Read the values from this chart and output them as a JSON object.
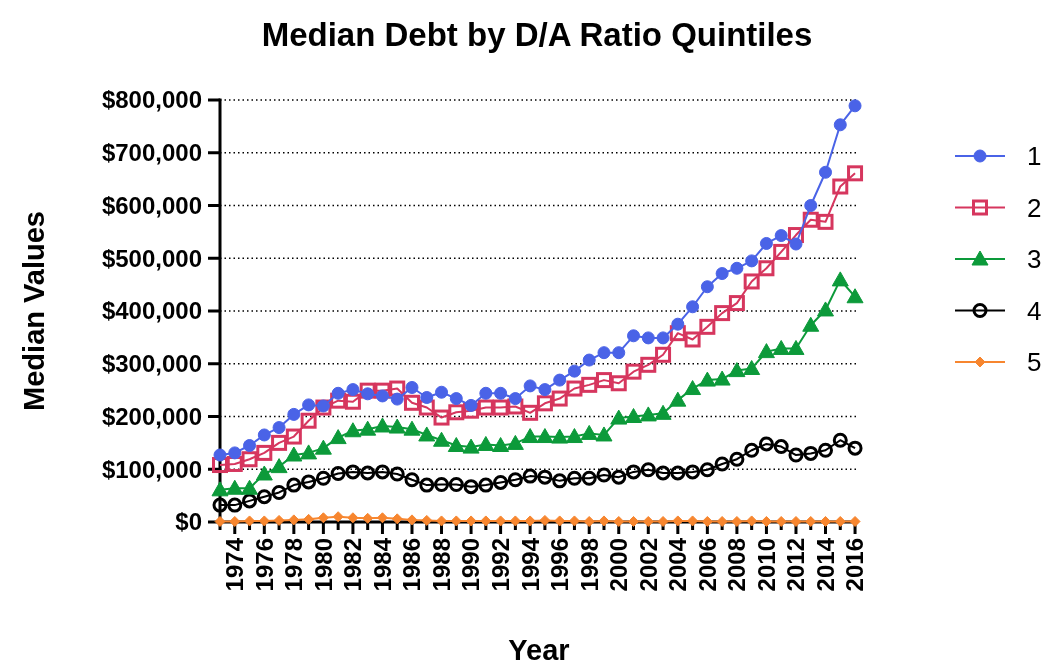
{
  "chart_data": {
    "type": "line",
    "title": "Median Debt by D/A Ratio Quintiles",
    "xlabel": "Year",
    "ylabel": "Median Values",
    "x": [
      1973,
      1974,
      1975,
      1976,
      1977,
      1978,
      1979,
      1980,
      1981,
      1982,
      1983,
      1984,
      1985,
      1986,
      1987,
      1988,
      1989,
      1990,
      1991,
      1992,
      1993,
      1994,
      1995,
      1996,
      1997,
      1998,
      1999,
      2000,
      2001,
      2002,
      2003,
      2004,
      2005,
      2006,
      2007,
      2008,
      2009,
      2010,
      2011,
      2012,
      2013,
      2014,
      2015,
      2016
    ],
    "series": [
      {
        "name": "1",
        "color": "#4a63e7",
        "marker": "circle",
        "values": [
          127000,
          131000,
          145000,
          165000,
          179000,
          204000,
          222000,
          220000,
          244000,
          251000,
          243000,
          239000,
          233000,
          255000,
          236000,
          246000,
          234000,
          221000,
          244000,
          244000,
          234000,
          258000,
          251000,
          269000,
          286000,
          307000,
          321000,
          321000,
          353000,
          349000,
          349000,
          375000,
          408000,
          446000,
          471000,
          481000,
          495000,
          528000,
          543000,
          527000,
          600000,
          663000,
          753000,
          789000
        ]
      },
      {
        "name": "2",
        "color": "#d6365e",
        "marker": "square",
        "values": [
          108000,
          110000,
          119000,
          131000,
          150000,
          162000,
          192000,
          217000,
          230000,
          228000,
          249000,
          249000,
          253000,
          226000,
          217000,
          198000,
          208000,
          211000,
          217000,
          217000,
          219000,
          207000,
          225000,
          234000,
          253000,
          260000,
          269000,
          263000,
          285000,
          298000,
          317000,
          358000,
          346000,
          370000,
          396000,
          415000,
          456000,
          481000,
          512000,
          544000,
          573000,
          569000,
          636000,
          661000
        ]
      },
      {
        "name": "3",
        "color": "#0c9a3a",
        "marker": "triangle",
        "values": [
          61000,
          64000,
          64000,
          91000,
          105000,
          127000,
          131000,
          140000,
          160000,
          173000,
          176000,
          182000,
          180000,
          176000,
          165000,
          155000,
          145000,
          142000,
          147000,
          145000,
          149000,
          162000,
          162000,
          161000,
          162000,
          168000,
          165000,
          197000,
          200000,
          203000,
          206000,
          231000,
          253000,
          269000,
          271000,
          287000,
          291000,
          323000,
          329000,
          329000,
          373000,
          402000,
          459000,
          427000
        ]
      },
      {
        "name": "4",
        "color": "#000000",
        "marker": "circle",
        "values": [
          32000,
          32000,
          40000,
          48000,
          56000,
          70000,
          76000,
          83000,
          92000,
          95000,
          93000,
          95000,
          91000,
          80000,
          70000,
          71000,
          71000,
          67000,
          70000,
          75000,
          80000,
          87000,
          85000,
          78000,
          83000,
          83000,
          89000,
          85000,
          95000,
          99000,
          93000,
          93000,
          95000,
          99000,
          110000,
          119000,
          136000,
          148000,
          143000,
          127000,
          130000,
          136000,
          155000,
          140000
        ]
      },
      {
        "name": "5",
        "color": "#f7862f",
        "marker": "diamond",
        "values": [
          1000,
          1000,
          2000,
          2000,
          3000,
          4000,
          5000,
          8000,
          10000,
          8000,
          7000,
          8000,
          6000,
          4000,
          3000,
          2000,
          2000,
          2000,
          2000,
          2000,
          2000,
          2000,
          3000,
          2000,
          2000,
          1000,
          2000,
          1000,
          1000,
          1000,
          1000,
          2000,
          2000,
          1000,
          1000,
          1000,
          2000,
          1000,
          1000,
          1000,
          1000,
          1000,
          1000,
          1000
        ]
      }
    ],
    "xlim": [
      1973,
      2016.2
    ],
    "xticks": [
      {
        "value": 1973,
        "label": null
      },
      {
        "value": 1974,
        "label": "1974"
      },
      {
        "value": 1975,
        "label": null
      },
      {
        "value": 1976,
        "label": "1976"
      },
      {
        "value": 1977,
        "label": null
      },
      {
        "value": 1978,
        "label": "1978"
      },
      {
        "value": 1979,
        "label": null
      },
      {
        "value": 1980,
        "label": "1980"
      },
      {
        "value": 1981,
        "label": null
      },
      {
        "value": 1982,
        "label": "1982"
      },
      {
        "value": 1983,
        "label": null
      },
      {
        "value": 1984,
        "label": "1984"
      },
      {
        "value": 1985,
        "label": null
      },
      {
        "value": 1986,
        "label": "1986"
      },
      {
        "value": 1987,
        "label": null
      },
      {
        "value": 1988,
        "label": "1988"
      },
      {
        "value": 1989,
        "label": null
      },
      {
        "value": 1990,
        "label": "1990"
      },
      {
        "value": 1991,
        "label": null
      },
      {
        "value": 1992,
        "label": "1992"
      },
      {
        "value": 1993,
        "label": null
      },
      {
        "value": 1994,
        "label": "1994"
      },
      {
        "value": 1995,
        "label": null
      },
      {
        "value": 1996,
        "label": "1996"
      },
      {
        "value": 1997,
        "label": null
      },
      {
        "value": 1998,
        "label": "1998"
      },
      {
        "value": 1999,
        "label": null
      },
      {
        "value": 2000,
        "label": "2000"
      },
      {
        "value": 2001,
        "label": null
      },
      {
        "value": 2002,
        "label": "2002"
      },
      {
        "value": 2003,
        "label": null
      },
      {
        "value": 2004,
        "label": "2004"
      },
      {
        "value": 2005,
        "label": null
      },
      {
        "value": 2006,
        "label": "2006"
      },
      {
        "value": 2007,
        "label": null
      },
      {
        "value": 2008,
        "label": "2008"
      },
      {
        "value": 2009,
        "label": null
      },
      {
        "value": 2010,
        "label": "2010"
      },
      {
        "value": 2011,
        "label": null
      },
      {
        "value": 2012,
        "label": "2012"
      },
      {
        "value": 2013,
        "label": null
      },
      {
        "value": 2014,
        "label": "2014"
      },
      {
        "value": 2015,
        "label": null
      },
      {
        "value": 2016,
        "label": "2016"
      }
    ],
    "ylim": [
      0,
      800000
    ],
    "yticks": [
      {
        "value": 0,
        "label": "$0"
      },
      {
        "value": 100000,
        "label": "$100,000"
      },
      {
        "value": 200000,
        "label": "$200,000"
      },
      {
        "value": 300000,
        "label": "$300,000"
      },
      {
        "value": 400000,
        "label": "$400,000"
      },
      {
        "value": 500000,
        "label": "$500,000"
      },
      {
        "value": 600000,
        "label": "$600,000"
      },
      {
        "value": 700000,
        "label": "$700,000"
      },
      {
        "value": 800000,
        "label": "$800,000"
      }
    ],
    "grid": "y",
    "legend": "right",
    "line_style": "solid"
  }
}
